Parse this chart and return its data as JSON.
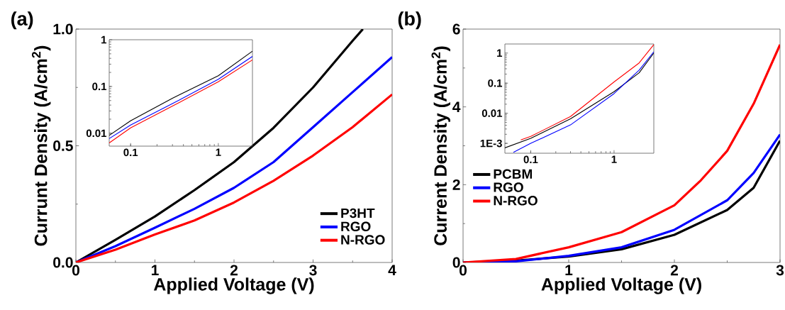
{
  "chart_data": [
    {
      "type": "line",
      "title": "(a)",
      "xlabel": "Applied Voltage (V)",
      "ylabel": "Currunt Density (A/cm$^{2}$)",
      "xlim": [
        0,
        4
      ],
      "ylim": [
        0,
        1.0
      ],
      "xticks": [
        0,
        1,
        2,
        3,
        4
      ],
      "yticks": [
        {
          "value": 0,
          "label": "0.0"
        },
        0.5,
        {
          "value": 1,
          "label": "1.0"
        }
      ],
      "legend": "bottom right",
      "series": [
        {
          "name": "P3HT",
          "color": "#000000",
          "x": [
            0,
            0.5,
            1,
            1.5,
            2,
            2.5,
            3,
            3.5,
            3.63
          ],
          "values": [
            0,
            0.097,
            0.197,
            0.31,
            0.43,
            0.577,
            0.75,
            0.95,
            1.0
          ]
        },
        {
          "name": "RGO",
          "color": "#0000ff",
          "x": [
            0,
            0.5,
            1,
            1.5,
            2,
            2.5,
            3,
            3.5,
            4
          ],
          "values": [
            0,
            0.07,
            0.149,
            0.23,
            0.32,
            0.43,
            0.58,
            0.73,
            0.88
          ]
        },
        {
          "name": "N-RGO",
          "color": "#ff0000",
          "x": [
            0,
            0.5,
            1,
            1.5,
            2,
            2.5,
            3,
            3.5,
            4
          ],
          "values": [
            0,
            0.055,
            0.12,
            0.18,
            0.257,
            0.35,
            0.458,
            0.58,
            0.72
          ]
        }
      ]
    },
    {
      "type": "line",
      "log": "xy",
      "xlim": [
        0.057,
        2.45
      ],
      "ylim": [
        0.0053,
        1
      ],
      "xticks": [
        0.1,
        1
      ],
      "yticks": [
        0.01,
        0.1,
        1
      ],
      "series": [
        {
          "color": "#000000",
          "x": [
            0.057,
            0.1,
            0.3,
            1,
            2.45
          ],
          "values": [
            0.009,
            0.0185,
            0.056,
            0.17,
            0.57
          ]
        },
        {
          "color": "#0000ff",
          "x": [
            0.057,
            0.1,
            0.3,
            1,
            2.45
          ],
          "values": [
            0.0077,
            0.015,
            0.043,
            0.143,
            0.44
          ]
        },
        {
          "color": "#ff0000",
          "x": [
            0.057,
            0.1,
            0.3,
            1,
            2.45
          ],
          "values": [
            0.0062,
            0.013,
            0.038,
            0.126,
            0.37
          ]
        }
      ]
    },
    {
      "type": "line",
      "title": "(b)",
      "xlabel": "Applied Voltage (V)",
      "ylabel": "Current Density (A/cm$^{2}$)",
      "xlim": [
        0,
        3
      ],
      "ylim": [
        0,
        6
      ],
      "xticks": [
        0,
        1,
        2,
        3
      ],
      "yticks": [
        0,
        2,
        4,
        6
      ],
      "legend": "left",
      "series": [
        {
          "name": "PCBM",
          "color": "#000000",
          "x": [
            0,
            0.5,
            1,
            1.5,
            2,
            2.5,
            2.75,
            3
          ],
          "values": [
            0,
            0.05,
            0.15,
            0.34,
            0.71,
            1.35,
            1.92,
            3.13
          ]
        },
        {
          "name": "RGO",
          "color": "#0000ff",
          "x": [
            0,
            0.5,
            1,
            1.5,
            2,
            2.5,
            2.75,
            3
          ],
          "values": [
            0,
            0.03,
            0.17,
            0.39,
            0.84,
            1.6,
            2.3,
            3.29
          ]
        },
        {
          "name": "N-RGO",
          "color": "#ff0000",
          "x": [
            0,
            0.5,
            1,
            1.5,
            2,
            2.25,
            2.5,
            2.75,
            3
          ],
          "values": [
            0,
            0.09,
            0.39,
            0.78,
            1.47,
            2.11,
            2.87,
            4.08,
            5.6
          ]
        }
      ]
    },
    {
      "type": "line",
      "log": "xy",
      "xlim": [
        0.049,
        3
      ],
      "ylim": [
        0.00047,
        2
      ],
      "xticks": [
        0.1,
        1
      ],
      "yticks": [
        {
          "value": 0.001,
          "label": "1E-3"
        },
        0.01,
        0.1,
        1
      ],
      "series": [
        {
          "color": "#000000",
          "x": [
            0.049,
            0.1,
            0.3,
            1,
            2,
            3
          ],
          "values": [
            0.00071,
            0.00147,
            0.0065,
            0.052,
            0.22,
            1.0
          ]
        },
        {
          "color": "#0000ff",
          "x": [
            0.062,
            0.1,
            0.3,
            1,
            2,
            3
          ],
          "values": [
            0.0005,
            0.001,
            0.0041,
            0.045,
            0.27,
            1.1
          ]
        },
        {
          "color": "#ff0000",
          "x": [
            0.076,
            0.1,
            0.3,
            1,
            2,
            3
          ],
          "values": [
            0.0013,
            0.0017,
            0.0078,
            0.11,
            0.47,
            1.9
          ]
        }
      ]
    }
  ]
}
